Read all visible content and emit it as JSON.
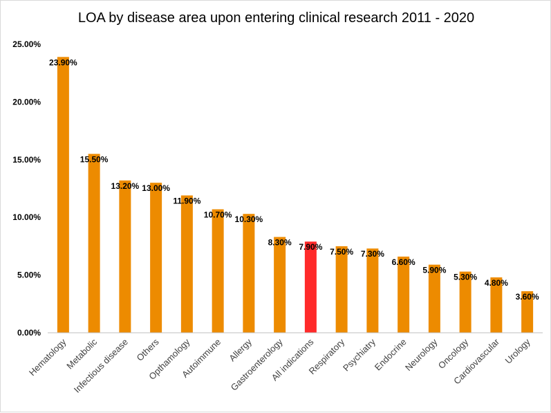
{
  "chart_data": {
    "type": "bar",
    "title": "LOA by disease area upon entering clinical research 2011 - 2020",
    "xlabel": "",
    "ylabel": "",
    "categories": [
      "Hematology",
      "Metabolic",
      "Infectious disease",
      "Others",
      "Opthamology",
      "Autoimmune",
      "Allergy",
      "Gastroenterology",
      "All indications",
      "Respiratory",
      "Psychiatry",
      "Endocrine",
      "Neurology",
      "Oncology",
      "Cardiovascular",
      "Urology"
    ],
    "values": [
      23.9,
      15.5,
      13.2,
      13.0,
      11.9,
      10.7,
      10.3,
      8.3,
      7.9,
      7.5,
      7.3,
      6.6,
      5.9,
      5.3,
      4.8,
      3.6
    ],
    "data_labels": [
      "23.90%",
      "15.50%",
      "13.20%",
      "13.00%",
      "11.90%",
      "10.70%",
      "10.30%",
      "8.30%",
      "7.90%",
      "7.50%",
      "7.30%",
      "6.60%",
      "5.90%",
      "5.30%",
      "4.80%",
      "3.60%"
    ],
    "ylim": [
      0,
      25
    ],
    "yticks": [
      0,
      5,
      10,
      15,
      20,
      25
    ],
    "ytick_labels": [
      "0.00%",
      "5.00%",
      "10.00%",
      "15.00%",
      "20.00%",
      "25.00%"
    ],
    "grid": false,
    "legend": "none",
    "colors": {
      "bar": "#ed8b00",
      "highlight": "#ff2a2a",
      "highlight_category": "All indications",
      "axis": "#bfbfbf"
    }
  }
}
